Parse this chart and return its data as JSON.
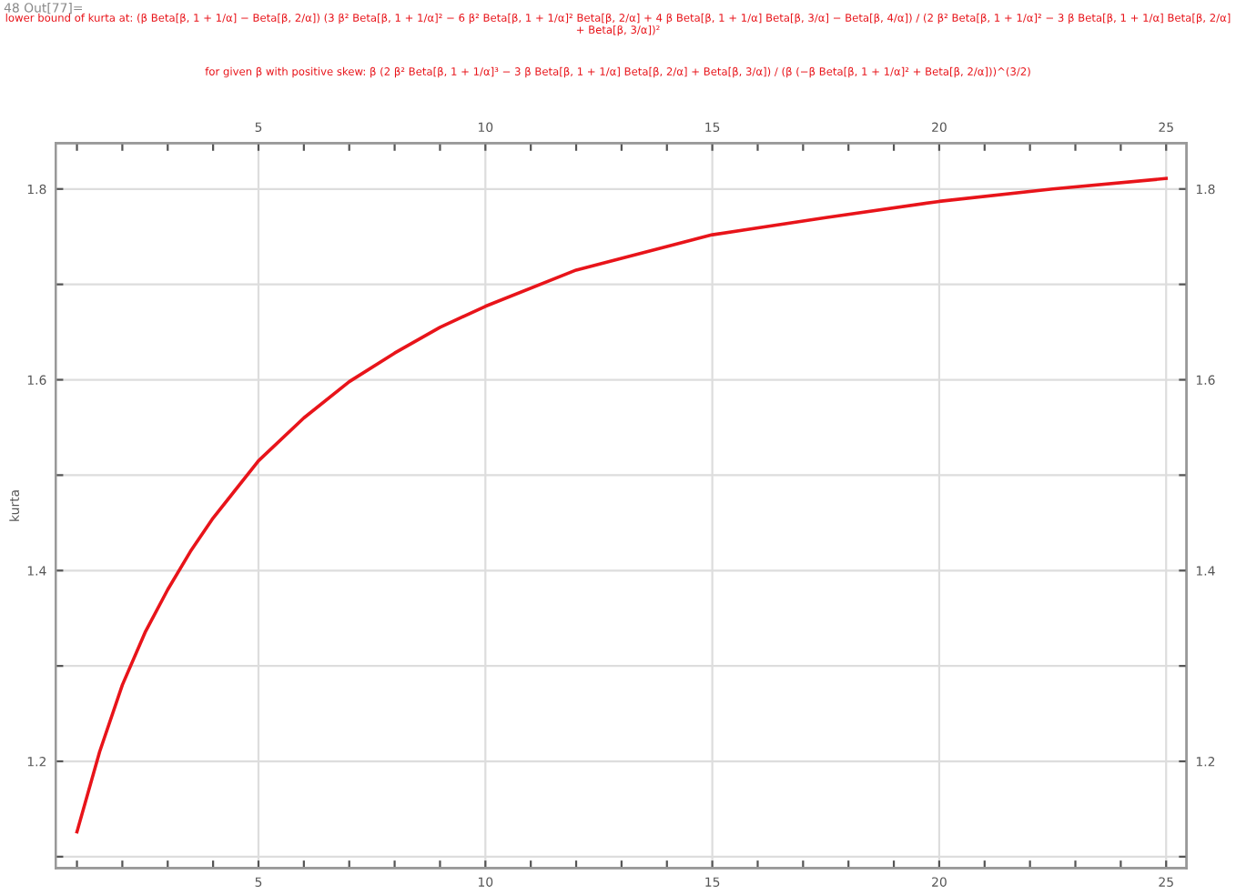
{
  "chart_data": {
    "type": "line",
    "title": "lower bound of kurta at: (β Beta[β, 1 + 1/α] − Beta[β, 2/α]) (3 β² Beta[β, 1 + 1/α]² − 6 β² Beta[β, 1 + 1/α]² Beta[β, 2/α] + 4 β Beta[β, 1 + 1/α] Beta[β, 3/α] − Beta[β, 4/α]) / (2 β² Beta[β, 1 + 1/α]² − 3 β Beta[β, 1 + 1/α] Beta[β, 2/α] + Beta[β, 3/α])²",
    "subtitle": "for given β with positive skew: β (2 β² Beta[β, 1 + 1/α]³ − 3 β Beta[β, 1 + 1/α] Beta[β, 2/α] + Beta[β, 3/α]) / (β (−β Beta[β, 1 + 1/α]² + Beta[β, 2/α]))^(3/2)",
    "ylabel": "kurta",
    "annotations": [
      "48 Out[77]="
    ],
    "x": [
      1,
      1.5,
      2,
      2.5,
      3,
      3.5,
      4,
      5,
      6,
      7,
      8,
      9,
      10,
      12,
      15,
      17.5,
      20,
      22.5,
      25
    ],
    "series": [
      {
        "color": "#e8141a",
        "values": [
          1.126,
          1.21,
          1.28,
          1.335,
          1.38,
          1.42,
          1.455,
          1.515,
          1.56,
          1.598,
          1.628,
          1.655,
          1.677,
          1.715,
          1.752,
          1.77,
          1.787,
          1.8,
          1.811
        ]
      }
    ],
    "xlim": [
      0.53,
      25.45
    ],
    "ylim": [
      1.088,
      1.848
    ],
    "xticks": [
      {
        "value": 1,
        "label": null
      },
      {
        "value": 2,
        "label": null
      },
      {
        "value": 3,
        "label": null
      },
      {
        "value": 4,
        "label": null
      },
      5,
      {
        "value": 6,
        "label": null
      },
      {
        "value": 7,
        "label": null
      },
      {
        "value": 8,
        "label": null
      },
      {
        "value": 9,
        "label": null
      },
      10,
      {
        "value": 11,
        "label": null
      },
      {
        "value": 12,
        "label": null
      },
      {
        "value": 13,
        "label": null
      },
      {
        "value": 14,
        "label": null
      },
      15,
      {
        "value": 16,
        "label": null
      },
      {
        "value": 17,
        "label": null
      },
      {
        "value": 18,
        "label": null
      },
      {
        "value": 19,
        "label": null
      },
      20,
      {
        "value": 21,
        "label": null
      },
      {
        "value": 22,
        "label": null
      },
      {
        "value": 23,
        "label": null
      },
      {
        "value": 24,
        "label": null
      },
      25
    ],
    "yticks": [
      {
        "value": 1.1,
        "label": null
      },
      1.2,
      {
        "value": 1.3,
        "label": null
      },
      1.4,
      {
        "value": 1.5,
        "label": null
      },
      1.6,
      {
        "value": 1.7,
        "label": null
      },
      1.8
    ],
    "x2lim": [
      0.53,
      25.45
    ],
    "x2ticks": [
      {
        "value": 1,
        "label": null
      },
      {
        "value": 2,
        "label": null
      },
      {
        "value": 3,
        "label": null
      },
      {
        "value": 4,
        "label": null
      },
      5,
      {
        "value": 6,
        "label": null
      },
      {
        "value": 7,
        "label": null
      },
      {
        "value": 8,
        "label": null
      },
      {
        "value": 9,
        "label": null
      },
      10,
      {
        "value": 11,
        "label": null
      },
      {
        "value": 12,
        "label": null
      },
      {
        "value": 13,
        "label": null
      },
      {
        "value": 14,
        "label": null
      },
      15,
      {
        "value": 16,
        "label": null
      },
      {
        "value": 17,
        "label": null
      },
      {
        "value": 18,
        "label": null
      },
      {
        "value": 19,
        "label": null
      },
      20,
      {
        "value": 21,
        "label": null
      },
      {
        "value": 22,
        "label": null
      },
      {
        "value": 23,
        "label": null
      },
      {
        "value": 24,
        "label": null
      },
      25
    ],
    "y2lim": [
      1.088,
      1.848
    ],
    "y2ticks": [
      {
        "value": 1.1,
        "label": null
      },
      1.2,
      {
        "value": 1.3,
        "label": null
      },
      1.4,
      {
        "value": 1.5,
        "label": null
      },
      1.6,
      {
        "value": 1.7,
        "label": null
      },
      1.8
    ],
    "grid": true,
    "marker": "none",
    "line_style": "solid"
  }
}
